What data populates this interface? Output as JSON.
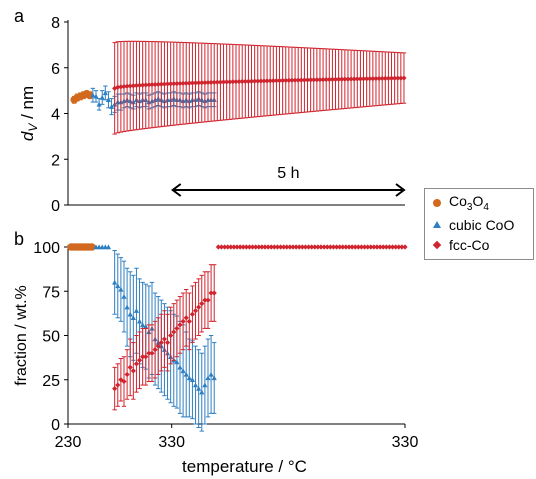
{
  "colors": {
    "co3o4": "#d2691e",
    "cubic": "#2e7fc1",
    "fcc": "#d0242e",
    "axis": "#000000"
  },
  "legend": {
    "items": [
      {
        "key": "co3o4",
        "label_main": "Co",
        "label_sub1": "3",
        "label_mid": "O",
        "label_sub2": "4",
        "symbol": "circle-icon"
      },
      {
        "key": "cubic",
        "label": "cubic CoO",
        "symbol": "triangle-icon"
      },
      {
        "key": "fcc",
        "label": "fcc-Co",
        "symbol": "diamond-icon"
      }
    ]
  },
  "chart_data": [
    {
      "panel_label": "a",
      "type": "scatter",
      "ylabel_main": "d",
      "ylabel_sub": "V",
      "ylabel_unit": " / nm",
      "ylim": [
        0,
        8
      ],
      "yticks": [
        "0",
        "2",
        "4",
        "6",
        "8"
      ],
      "annotation": {
        "text": "5 h",
        "from": 20,
        "to": 65
      },
      "x_domain": [
        0,
        65
      ],
      "series": [
        {
          "key": "co3o4",
          "x": [
            1.2,
            1.8,
            2.4,
            3.0,
            3.6,
            4.2
          ],
          "y": [
            4.6,
            4.7,
            4.75,
            4.8,
            4.85,
            4.8
          ],
          "err": [
            0.15,
            0.15,
            0.15,
            0.15,
            0.15,
            0.15
          ]
        },
        {
          "key": "cubic",
          "x": [
            4.8,
            5.4,
            6.0,
            6.6,
            7.2,
            7.8,
            8.4,
            9.0,
            9.6,
            10.2,
            10.8,
            11.4,
            12.0,
            12.6,
            13.2,
            13.8,
            14.4,
            15.0,
            15.6,
            16.2,
            16.8,
            17.4,
            18.0,
            18.6,
            19.2,
            19.8,
            20.4,
            21.0,
            21.6,
            22.2,
            22.8,
            23.4,
            24.0,
            24.6,
            25.2,
            25.8,
            26.4,
            27.0,
            27.6,
            28.2
          ],
          "y": [
            4.8,
            4.75,
            4.4,
            4.7,
            4.9,
            4.6,
            4.3,
            4.4,
            4.5,
            4.5,
            4.55,
            4.6,
            4.55,
            4.5,
            4.6,
            4.55,
            4.6,
            4.6,
            4.5,
            4.55,
            4.6,
            4.65,
            4.6,
            4.55,
            4.6,
            4.6,
            4.65,
            4.6,
            4.6,
            4.55,
            4.6,
            4.55,
            4.6,
            4.6,
            4.65,
            4.6,
            4.55,
            4.6,
            4.6,
            4.6
          ],
          "err": [
            0.3,
            0.25,
            0.25,
            0.3,
            0.3,
            0.35,
            0.35,
            0.35,
            0.35,
            0.35,
            0.3,
            0.3,
            0.3,
            0.3,
            0.3,
            0.3,
            0.3,
            0.3,
            0.3,
            0.3,
            0.3,
            0.3,
            0.3,
            0.3,
            0.3,
            0.3,
            0.3,
            0.3,
            0.3,
            0.3,
            0.3,
            0.3,
            0.3,
            0.3,
            0.3,
            0.3,
            0.3,
            0.3,
            0.3,
            0.3
          ]
        },
        {
          "key": "fcc",
          "x_start": 9.0,
          "x_step": 0.6,
          "count": 94,
          "y_start": 5.1,
          "y_end": 5.55,
          "err_start": 2.0,
          "err_end": 1.1
        }
      ]
    },
    {
      "panel_label": "b",
      "type": "scatter",
      "ylabel": "fraction / wt.%",
      "ylim": [
        0,
        100
      ],
      "yticks": [
        "0",
        "25",
        "50",
        "75",
        "100"
      ],
      "xlabel": "temperature / °C",
      "xticks": [
        {
          "x": 0,
          "label": "230"
        },
        {
          "x": 20,
          "label": "330"
        },
        {
          "x": 65,
          "label": "330"
        }
      ],
      "x_domain": [
        0,
        65
      ],
      "series": [
        {
          "key": "co3o4",
          "x_start": 0.6,
          "x_step": 0.5,
          "count": 9,
          "y": 100
        },
        {
          "key": "cubic",
          "x": [
            5.4,
            6.0,
            6.6,
            7.2,
            7.8,
            9.0,
            9.6,
            10.2,
            10.8,
            11.4,
            12.0,
            12.6,
            13.2,
            13.8,
            14.4,
            15.0,
            15.6,
            16.2,
            16.8,
            17.4,
            18.0,
            18.6,
            19.2,
            19.8,
            20.4,
            21.0,
            21.6,
            22.2,
            22.8,
            23.4,
            24.0,
            24.6,
            25.2,
            25.8,
            26.4,
            27.0,
            27.6,
            28.2
          ],
          "y": [
            100,
            100,
            100,
            100,
            100,
            80,
            78,
            76,
            72,
            66,
            62,
            60,
            64,
            58,
            56,
            55,
            52,
            54,
            48,
            46,
            44,
            42,
            40,
            38,
            36,
            35,
            32,
            30,
            28,
            26,
            25,
            22,
            20,
            18,
            22,
            26,
            28,
            26
          ],
          "err": [
            0,
            0,
            0,
            0,
            0,
            18,
            18,
            18,
            20,
            22,
            24,
            24,
            24,
            24,
            24,
            24,
            26,
            26,
            26,
            26,
            26,
            26,
            26,
            26,
            26,
            26,
            26,
            26,
            24,
            22,
            22,
            22,
            22,
            22,
            22,
            22,
            22,
            20
          ]
        },
        {
          "key": "fcc",
          "x": [
            9.0,
            9.6,
            10.2,
            10.8,
            11.4,
            12.0,
            12.6,
            13.2,
            13.8,
            14.4,
            15.0,
            15.6,
            16.2,
            16.8,
            17.4,
            18.0,
            18.6,
            19.2,
            19.8,
            20.4,
            21.0,
            21.6,
            22.2,
            22.8,
            23.4,
            24.0,
            24.6,
            25.2,
            25.8,
            26.4,
            27.0,
            27.6,
            28.2
          ],
          "y": [
            20,
            22,
            25,
            24,
            28,
            32,
            30,
            34,
            36,
            38,
            38,
            40,
            40,
            42,
            44,
            46,
            48,
            46,
            50,
            52,
            54,
            56,
            58,
            60,
            58,
            62,
            64,
            66,
            68,
            70,
            70,
            74,
            74
          ],
          "err": [
            12,
            12,
            12,
            14,
            14,
            16,
            16,
            16,
            16,
            16,
            16,
            16,
            16,
            16,
            16,
            16,
            16,
            16,
            16,
            16,
            16,
            16,
            16,
            16,
            16,
            16,
            16,
            16,
            16,
            16,
            16,
            16,
            16
          ]
        },
        {
          "key": "fcc",
          "x_start": 29.0,
          "x_step": 0.6,
          "count": 61,
          "y": 100
        }
      ]
    }
  ]
}
